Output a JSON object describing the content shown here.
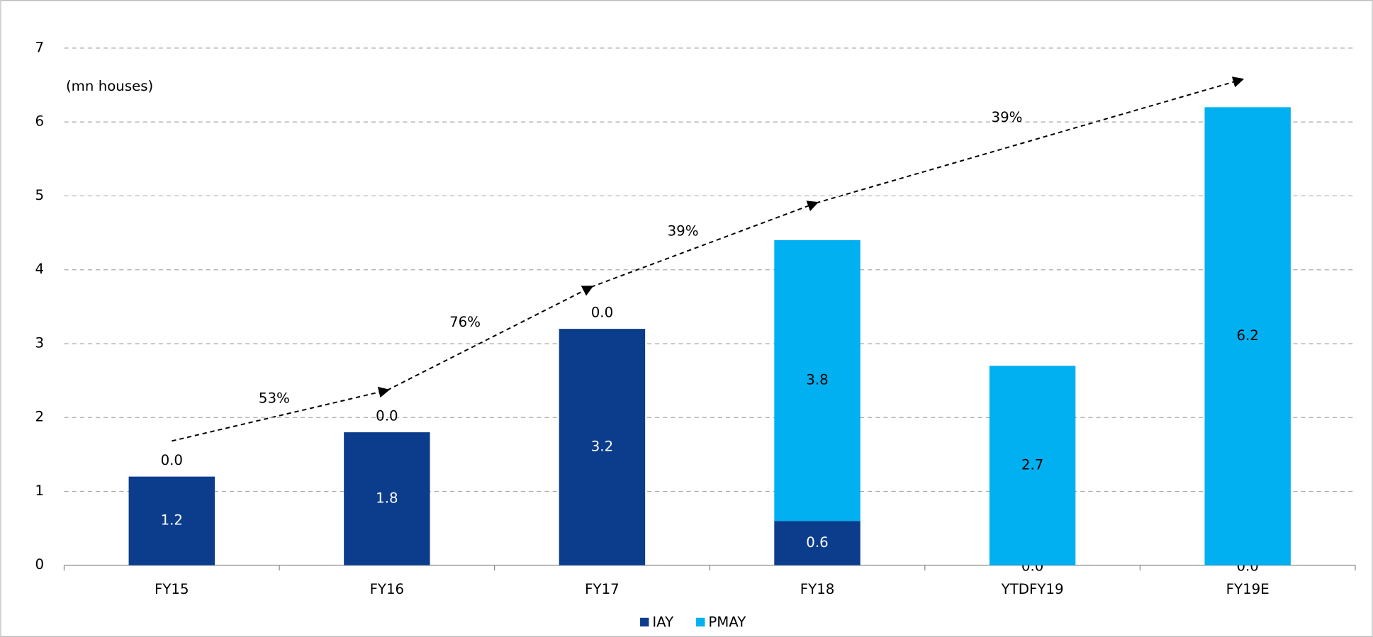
{
  "chart_data": {
    "type": "stacked_bar",
    "y_label": "(mn houses)",
    "categories": [
      "FY15",
      "FY16",
      "FY17",
      "FY18",
      "YTDFY19",
      "FY19E"
    ],
    "series": [
      {
        "name": "IAY",
        "color": "#0b3d8c",
        "values": [
          1.2,
          1.8,
          3.2,
          0.6,
          0.0,
          0.0
        ],
        "value_labels": [
          "1.2",
          "1.8",
          "3.2",
          "0.6",
          "0.0",
          "0.0"
        ]
      },
      {
        "name": "PMAY",
        "color": "#00b0f0",
        "values": [
          0.0,
          0.0,
          0.0,
          3.8,
          2.7,
          6.2
        ],
        "value_labels": [
          "0.0",
          "0.0",
          "0.0",
          "3.8",
          "2.7",
          "6.2"
        ]
      }
    ],
    "annotations": [
      "53%",
      "76%",
      "39%",
      "39%"
    ],
    "ylim": [
      0,
      7
    ],
    "yticks": [
      0,
      1,
      2,
      3,
      4,
      5,
      6,
      7
    ],
    "grid": true,
    "legend": "bottom"
  }
}
